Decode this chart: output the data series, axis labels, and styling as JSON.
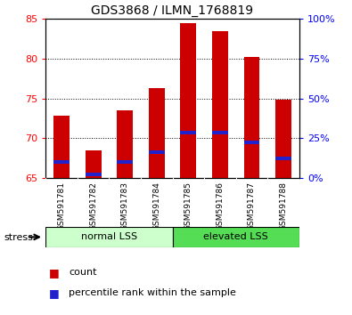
{
  "title": "GDS3868 / ILMN_1768819",
  "samples": [
    "GSM591781",
    "GSM591782",
    "GSM591783",
    "GSM591784",
    "GSM591785",
    "GSM591786",
    "GSM591787",
    "GSM591788"
  ],
  "counts": [
    72.8,
    68.5,
    73.5,
    76.3,
    84.5,
    83.5,
    80.2,
    74.8
  ],
  "percentile_ranks": [
    67.0,
    65.5,
    67.0,
    68.3,
    70.7,
    70.7,
    69.5,
    67.5
  ],
  "ymin": 65,
  "ymax": 85,
  "yticks": [
    65,
    70,
    75,
    80,
    85
  ],
  "right_ytick_vals": [
    0,
    25,
    50,
    75,
    100
  ],
  "bar_color": "#cc0000",
  "blue_color": "#2222cc",
  "group1_label": "normal LSS",
  "group2_label": "elevated LSS",
  "stress_label": "stress",
  "legend_count": "count",
  "legend_percentile": "percentile rank within the sample",
  "group1_color": "#ccffcc",
  "group2_color": "#55dd55",
  "label_bg_color": "#cccccc",
  "bar_width": 0.5
}
